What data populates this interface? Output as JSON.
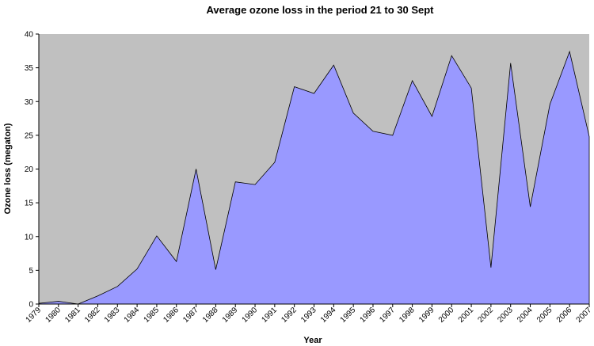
{
  "chart_data": {
    "type": "area",
    "title": "Average ozone loss in the period 21 to 30 Sept",
    "xlabel": "Year",
    "ylabel": "Ozone loss (megaton)",
    "ylim": [
      0,
      40
    ],
    "yticks": [
      0,
      5,
      10,
      15,
      20,
      25,
      30,
      35,
      40
    ],
    "grid": false,
    "legend": "none",
    "colors": {
      "plot_background": "#c0c0c0",
      "area_fill": "#9999ff",
      "line": "#000000"
    },
    "categories": [
      "1979",
      "1980",
      "1981",
      "1982",
      "1983",
      "1984",
      "1985",
      "1986",
      "1987",
      "1988",
      "1989",
      "1990",
      "1991",
      "1992",
      "1993",
      "1994",
      "1995",
      "1996",
      "1997",
      "1998",
      "1999",
      "2000",
      "2001",
      "2002",
      "2003",
      "2004",
      "2005",
      "2006",
      "2007"
    ],
    "values": [
      0.1,
      0.4,
      0.0,
      1.2,
      2.6,
      5.2,
      10.1,
      6.3,
      20.0,
      5.1,
      18.1,
      17.7,
      21.0,
      32.2,
      31.2,
      35.4,
      28.3,
      25.6,
      25.0,
      33.1,
      27.8,
      36.8,
      32.0,
      5.4,
      35.7,
      14.4,
      29.6,
      37.4,
      24.8
    ]
  }
}
